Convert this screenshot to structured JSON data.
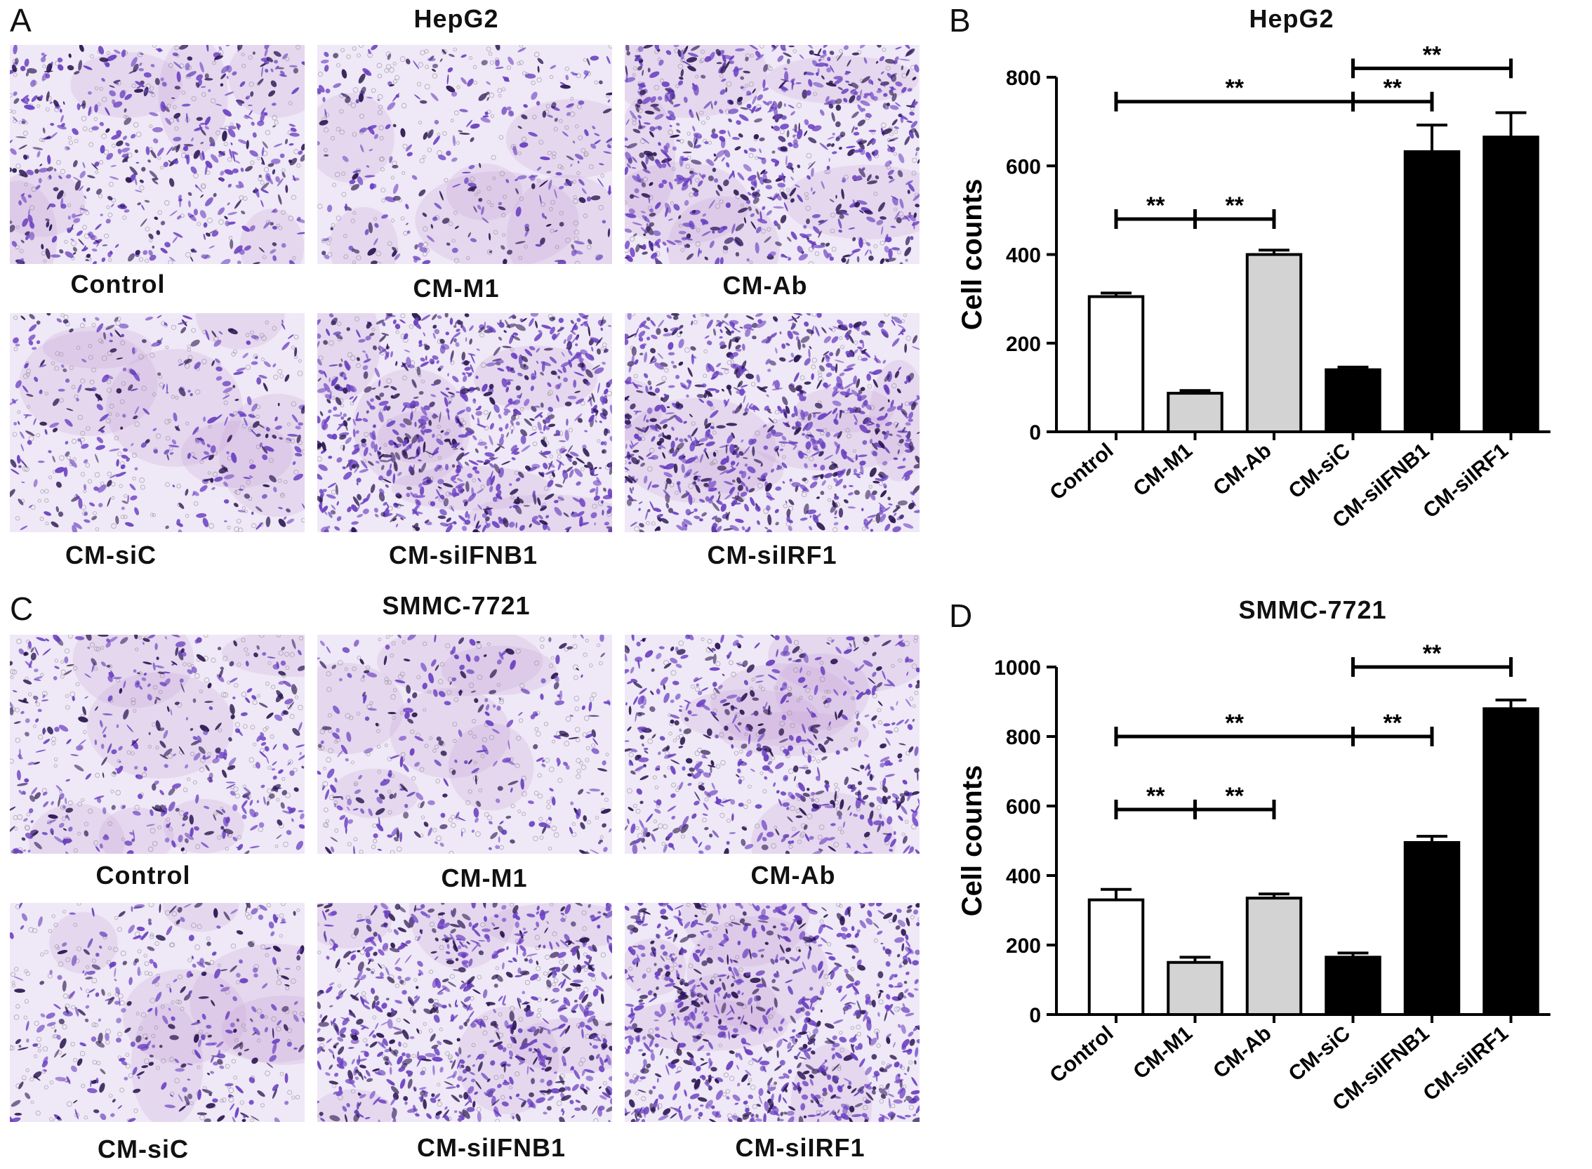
{
  "panels": {
    "A": {
      "letter": "A",
      "title": "HepG2"
    },
    "B": {
      "letter": "B",
      "title": "HepG2"
    },
    "C": {
      "letter": "C",
      "title": "SMMC-7721"
    },
    "D": {
      "letter": "D",
      "title": "SMMC-7721"
    }
  },
  "micrographs": {
    "hepg2": [
      {
        "label": "Control",
        "density": 0.55
      },
      {
        "label": "CM-M1",
        "density": 0.3
      },
      {
        "label": "CM-Ab",
        "density": 0.8
      },
      {
        "label": "CM-siC",
        "density": 0.35
      },
      {
        "label": "CM-siIFNB1",
        "density": 0.95
      },
      {
        "label": "CM-siIRF1",
        "density": 0.95
      }
    ],
    "smmc": [
      {
        "label": "Control",
        "density": 0.45
      },
      {
        "label": "CM-M1",
        "density": 0.3
      },
      {
        "label": "CM-Ab",
        "density": 0.6
      },
      {
        "label": "CM-siC",
        "density": 0.35
      },
      {
        "label": "CM-siIFNB1",
        "density": 0.85
      },
      {
        "label": "CM-siIRF1",
        "density": 0.95
      }
    ]
  },
  "colors": {
    "stain": "#6a3fc0",
    "stain_dark": "#2a1650",
    "background": "#efe8f6",
    "white_bar": "#ffffff",
    "gray_bar": "#d3d3d3",
    "black_bar": "#000000"
  },
  "chart_data": [
    {
      "type": "bar",
      "title": "HepG2",
      "ylabel": "Cell counts",
      "ylim": [
        0,
        800
      ],
      "yticks": [
        0,
        200,
        400,
        600,
        800
      ],
      "categories": [
        "Control",
        "CM-M1",
        "CM-Ab",
        "CM-siC",
        "CM-siIFNB1",
        "CM-siIRF1"
      ],
      "values": [
        305,
        87,
        400,
        140,
        632,
        665
      ],
      "errors": [
        8,
        6,
        10,
        6,
        60,
        55
      ],
      "bar_fill": [
        "white",
        "gray",
        "gray",
        "black",
        "black",
        "black"
      ],
      "significance": [
        {
          "from": 0,
          "to": 1,
          "label": "**",
          "y": 480
        },
        {
          "from": 1,
          "to": 2,
          "label": "**",
          "y": 480
        },
        {
          "from": 0,
          "to": 3,
          "label": "**",
          "y": 745
        },
        {
          "from": 3,
          "to": 4,
          "label": "**",
          "y": 745
        },
        {
          "from": 3,
          "to": 5,
          "label": "**",
          "y": 820
        }
      ]
    },
    {
      "type": "bar",
      "title": "SMMC-7721",
      "ylabel": "Cell counts",
      "ylim": [
        0,
        1000
      ],
      "yticks": [
        0,
        200,
        400,
        600,
        800,
        1000
      ],
      "categories": [
        "Control",
        "CM-M1",
        "CM-Ab",
        "CM-siC",
        "CM-siIFNB1",
        "CM-siIRF1"
      ],
      "values": [
        330,
        150,
        335,
        165,
        495,
        880
      ],
      "errors": [
        30,
        15,
        12,
        12,
        18,
        25
      ],
      "bar_fill": [
        "white",
        "gray",
        "gray",
        "black",
        "black",
        "black"
      ],
      "significance": [
        {
          "from": 0,
          "to": 1,
          "label": "**",
          "y": 590
        },
        {
          "from": 1,
          "to": 2,
          "label": "**",
          "y": 590
        },
        {
          "from": 0,
          "to": 3,
          "label": "**",
          "y": 800
        },
        {
          "from": 3,
          "to": 4,
          "label": "**",
          "y": 800
        },
        {
          "from": 3,
          "to": 5,
          "label": "**",
          "y": 1000
        }
      ]
    }
  ]
}
